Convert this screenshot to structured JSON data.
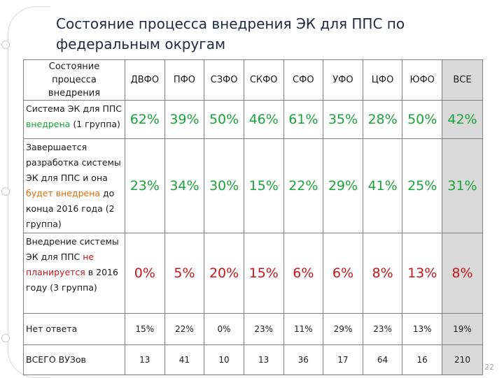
{
  "title_line1": "Состояние процесса внедрения ЭК для ППС по",
  "title_line2": "федеральным округам",
  "header": {
    "label": "Состояние процесса внедрения",
    "columns": [
      "ДВФО",
      "ПФО",
      "СЗФО",
      "СКФО",
      "СФО",
      "УФО",
      "ЦФО",
      "ЮФО",
      "ВСЕ"
    ]
  },
  "rows": [
    {
      "label_parts": [
        {
          "text": "Система ЭК для ППС ",
          "style": "normal"
        },
        {
          "text": "внедрена",
          "style": "green"
        },
        {
          "text": " (1 группа)",
          "style": "normal"
        }
      ],
      "values": [
        "62%",
        "39%",
        "50%",
        "46%",
        "61%",
        "35%",
        "28%",
        "50%",
        "42%"
      ]
    },
    {
      "label_parts": [
        {
          "text": "Завершается разработка системы ЭК для ППС и она ",
          "style": "normal"
        },
        {
          "text": "будет внедрена",
          "style": "orange"
        },
        {
          "text": " до конца 2016 года (2 группа)",
          "style": "normal"
        }
      ],
      "values": [
        "23%",
        "34%",
        "30%",
        "15%",
        "22%",
        "29%",
        "41%",
        "25%",
        "31%"
      ]
    },
    {
      "label_parts": [
        {
          "text": "Внедрение системы ЭК для ППС ",
          "style": "normal"
        },
        {
          "text": "не планируется",
          "style": "red"
        },
        {
          "text": " в 2016 году (3 группа)",
          "style": "normal"
        }
      ],
      "values": [
        "0%",
        "5%",
        "20%",
        "15%",
        "6%",
        "6%",
        "8%",
        "13%",
        "8%"
      ]
    },
    {
      "label_parts": [
        {
          "text": "Нет ответа",
          "style": "normal"
        }
      ],
      "values": [
        "15%",
        "22%",
        "0%",
        "23%",
        "11%",
        "29%",
        "23%",
        "13%",
        "19%"
      ]
    },
    {
      "label_parts": [
        {
          "text": "ВСЕГО ВУЗов",
          "style": "normal"
        }
      ],
      "values": [
        "13",
        "41",
        "10",
        "13",
        "36",
        "17",
        "64",
        "16",
        "210"
      ]
    }
  ],
  "page_number": "22",
  "colors": {
    "green": "#1aa33a",
    "orange": "#e36c09",
    "red": "#c8151b",
    "total_bg": "#d9d9d9",
    "title": "#1f2a3f"
  }
}
